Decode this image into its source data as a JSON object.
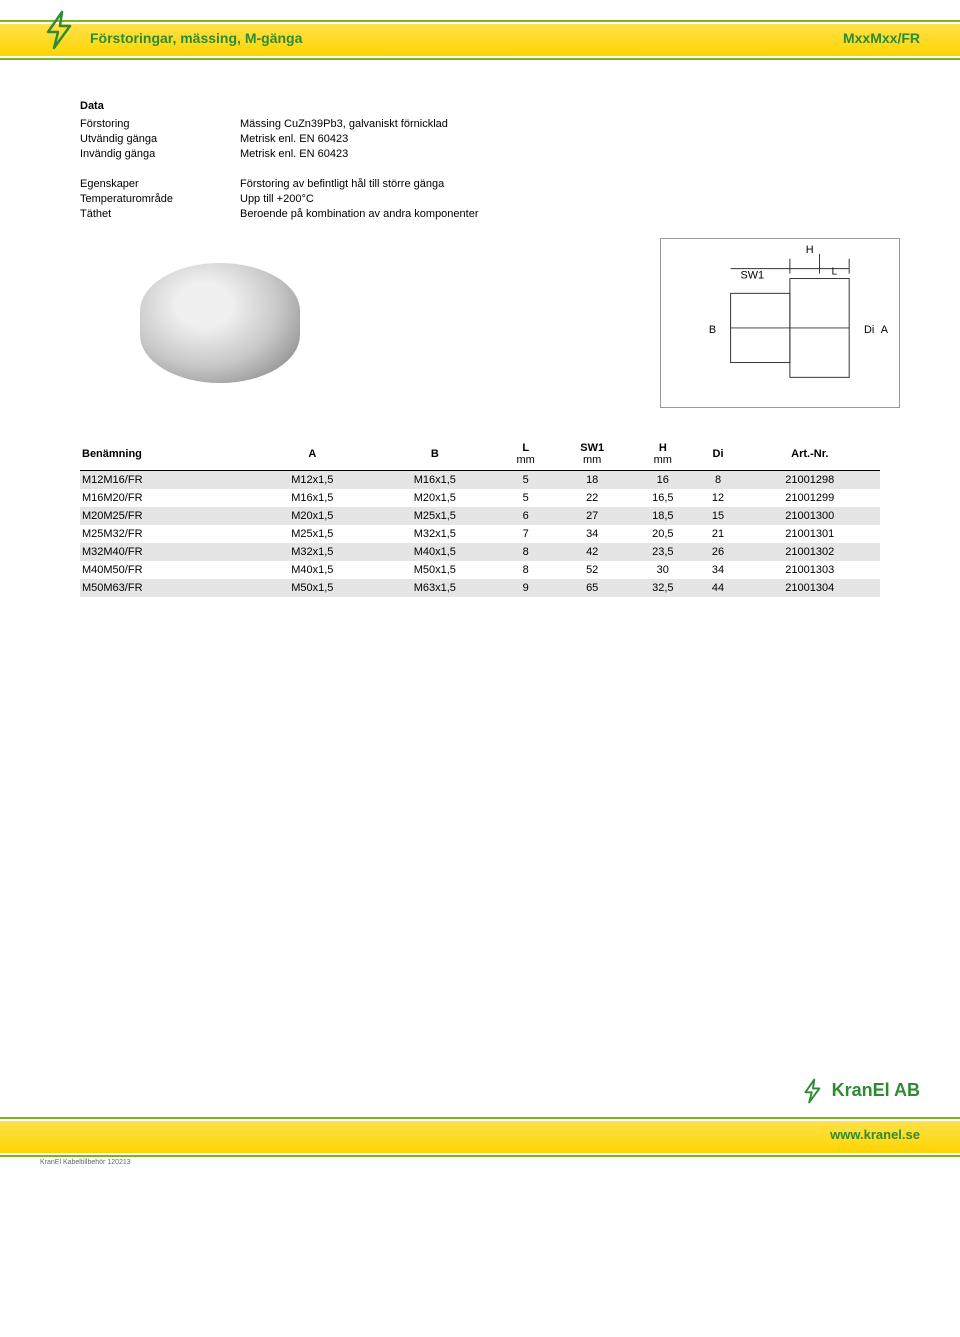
{
  "header": {
    "title": "Förstoringar, mässing, M-gänga",
    "code": "MxxMxx/FR"
  },
  "data_section": {
    "heading": "Data",
    "items": [
      {
        "label": "Förstoring",
        "value": "Mässing CuZn39Pb3, galvaniskt förnicklad"
      },
      {
        "label": "Utvändig gänga",
        "value": "Metrisk enl. EN 60423"
      },
      {
        "label": "Invändig gänga",
        "value": "Metrisk enl. EN 60423"
      }
    ]
  },
  "props_section": {
    "items": [
      {
        "label": "Egenskaper",
        "value": "Förstoring av befintligt hål till större gänga"
      },
      {
        "label": "Temperaturområde",
        "value": "Upp till +200°C"
      },
      {
        "label": "Täthet",
        "value": "Beroende på kombination av andra komponenter"
      }
    ]
  },
  "diagram_labels": {
    "H": "H",
    "L": "L",
    "SW1": "SW1",
    "B": "B",
    "Di": "Di",
    "A": "A"
  },
  "table": {
    "columns": [
      "Benämning",
      "A",
      "B",
      "L",
      "SW1",
      "H",
      "Di",
      "Art.-Nr."
    ],
    "units": [
      "",
      "",
      "",
      "mm",
      "mm",
      "mm",
      "",
      ""
    ],
    "rows": [
      [
        "M12M16/FR",
        "M12x1,5",
        "M16x1,5",
        "5",
        "18",
        "16",
        "8",
        "21001298"
      ],
      [
        "M16M20/FR",
        "M16x1,5",
        "M20x1,5",
        "5",
        "22",
        "16,5",
        "12",
        "21001299"
      ],
      [
        "M20M25/FR",
        "M20x1,5",
        "M25x1,5",
        "6",
        "27",
        "18,5",
        "15",
        "21001300"
      ],
      [
        "M25M32/FR",
        "M25x1,5",
        "M32x1,5",
        "7",
        "34",
        "20,5",
        "21",
        "21001301"
      ],
      [
        "M32M40/FR",
        "M32x1,5",
        "M40x1,5",
        "8",
        "42",
        "23,5",
        "26",
        "21001302"
      ],
      [
        "M40M50/FR",
        "M40x1,5",
        "M50x1,5",
        "8",
        "52",
        "30",
        "34",
        "21001303"
      ],
      [
        "M50M63/FR",
        "M50x1,5",
        "M63x1,5",
        "9",
        "65",
        "32,5",
        "44",
        "21001304"
      ]
    ],
    "shade_rows": [
      0,
      2,
      4,
      6
    ],
    "colors": {
      "shade": "#e5e5e5"
    }
  },
  "footer": {
    "brand": "KranEl AB",
    "url": "www.kranel.se",
    "small": "KranEl Kabeltillbehör 120213"
  },
  "colors": {
    "brand_green": "#2e8b32",
    "line_green": "#7ab51d",
    "yellow_top": "#ffe14a",
    "yellow_bottom": "#ffd400"
  }
}
